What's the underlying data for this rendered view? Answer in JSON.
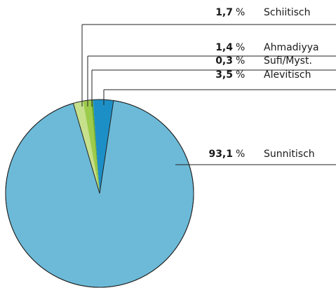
{
  "chart_data": {
    "type": "pie",
    "categories": [
      "Schiitisch",
      "Ahmadiyya",
      "Sufi/Myst.",
      "Alevitisch",
      "Sunnitisch"
    ],
    "values": [
      1.7,
      1.4,
      0.3,
      3.5,
      93.1
    ],
    "value_labels": [
      "1,7",
      "1,4",
      "0,3",
      "3,5",
      "93,1"
    ],
    "unit": "%",
    "colors": [
      "#c6e08c",
      "#9dcb4b",
      "#68a822",
      "#1d8fc7",
      "#6cbad8"
    ]
  }
}
